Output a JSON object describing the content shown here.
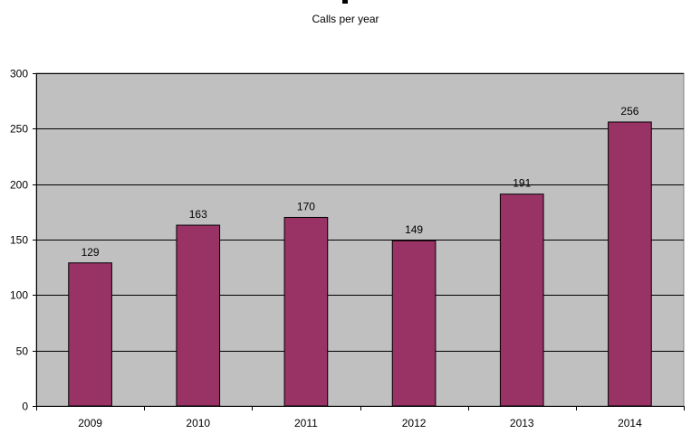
{
  "chart_data": {
    "type": "bar",
    "title": "Calls per year",
    "xlabel": "",
    "ylabel": "",
    "categories": [
      "2009",
      "2010",
      "2011",
      "2012",
      "2013",
      "2014"
    ],
    "values": [
      129,
      163,
      170,
      149,
      191,
      256
    ],
    "data_labels": [
      "129",
      "163",
      "170",
      "149",
      "191",
      "256"
    ],
    "ylim": [
      0,
      300
    ],
    "yticks": [
      0,
      50,
      100,
      150,
      200,
      250,
      300
    ],
    "ytick_labels": [
      "0",
      "50",
      "100",
      "150",
      "200",
      "250",
      "300"
    ],
    "grid": true,
    "legend": "none",
    "colors": {
      "bar_fill": "#993366",
      "plot_background": "#c0c0c0",
      "gridline": "#000000"
    }
  }
}
